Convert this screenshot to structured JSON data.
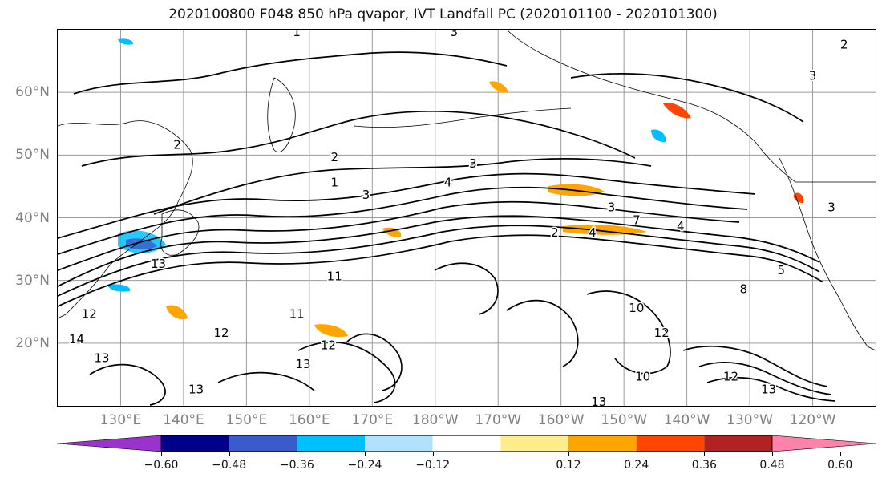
{
  "title": "2020100800 F048 850 hPa qvapor, IVT Landfall PC (2020101100 - 2020101300)",
  "map": {
    "lat_labels": [
      {
        "label": "60°N",
        "lat": 60
      },
      {
        "label": "50°N",
        "lat": 50
      },
      {
        "label": "40°N",
        "lat": 40
      },
      {
        "label": "30°N",
        "lat": 30
      },
      {
        "label": "20°N",
        "lat": 20
      }
    ],
    "lon_labels": [
      {
        "label": "130°E",
        "lon": 130
      },
      {
        "label": "140°E",
        "lon": 140
      },
      {
        "label": "150°E",
        "lon": 150
      },
      {
        "label": "160°E",
        "lon": 160
      },
      {
        "label": "170°E",
        "lon": 170
      },
      {
        "label": "180°W",
        "lon": 180
      },
      {
        "label": "170°W",
        "lon": 190
      },
      {
        "label": "160°W",
        "lon": 200
      },
      {
        "label": "150°W",
        "lon": 210
      },
      {
        "label": "140°W",
        "lon": 220
      },
      {
        "label": "130°W",
        "lon": 230
      },
      {
        "label": "120°W",
        "lon": 240
      }
    ],
    "extent": {
      "lon_min": 120,
      "lon_max": 250,
      "lat_min": 10,
      "lat_max": 70
    },
    "contour_labels": [
      {
        "text": "1",
        "lon": 158,
        "lat": 69
      },
      {
        "text": "3",
        "lon": 183,
        "lat": 69
      },
      {
        "text": "2",
        "lon": 139,
        "lat": 51
      },
      {
        "text": "2",
        "lon": 164,
        "lat": 49
      },
      {
        "text": "3",
        "lon": 186,
        "lat": 48
      },
      {
        "text": "1",
        "lon": 164,
        "lat": 45
      },
      {
        "text": "4",
        "lon": 182,
        "lat": 45
      },
      {
        "text": "3",
        "lon": 169,
        "lat": 43
      },
      {
        "text": "3",
        "lon": 208,
        "lat": 41
      },
      {
        "text": "7",
        "lon": 212,
        "lat": 39
      },
      {
        "text": "4",
        "lon": 219,
        "lat": 38
      },
      {
        "text": "4",
        "lon": 205,
        "lat": 37
      },
      {
        "text": "2",
        "lon": 199,
        "lat": 37
      },
      {
        "text": "13",
        "lon": 136,
        "lat": 32
      },
      {
        "text": "11",
        "lon": 164,
        "lat": 30
      },
      {
        "text": "12",
        "lon": 125,
        "lat": 24
      },
      {
        "text": "14",
        "lon": 123,
        "lat": 20
      },
      {
        "text": "13",
        "lon": 127,
        "lat": 17
      },
      {
        "text": "12",
        "lon": 146,
        "lat": 21
      },
      {
        "text": "11",
        "lon": 158,
        "lat": 24
      },
      {
        "text": "13",
        "lon": 159,
        "lat": 16
      },
      {
        "text": "12",
        "lon": 163,
        "lat": 19
      },
      {
        "text": "10",
        "lon": 212,
        "lat": 25
      },
      {
        "text": "12",
        "lon": 216,
        "lat": 21
      },
      {
        "text": "10",
        "lon": 213,
        "lat": 14
      },
      {
        "text": "13",
        "lon": 206,
        "lat": 10
      },
      {
        "text": "12",
        "lon": 227,
        "lat": 14
      },
      {
        "text": "13",
        "lon": 233,
        "lat": 12
      },
      {
        "text": "13",
        "lon": 142,
        "lat": 12
      },
      {
        "text": "2",
        "lon": 245,
        "lat": 67
      },
      {
        "text": "3",
        "lon": 240,
        "lat": 62
      },
      {
        "text": "3",
        "lon": 243,
        "lat": 41
      },
      {
        "text": "5",
        "lon": 235,
        "lat": 31
      },
      {
        "text": "8",
        "lon": 229,
        "lat": 28
      }
    ]
  },
  "colorbar": {
    "colors": [
      "#9a32cd",
      "#00008b",
      "#3a5acd",
      "#00bfff",
      "#b0e2ff",
      "#ffffff",
      "#ffec8b",
      "#ffa500",
      "#ff4500",
      "#b22222",
      "#ff82ab"
    ],
    "ticks": [
      "−0.60",
      "−0.48",
      "−0.36",
      "−0.24",
      "−0.12",
      "0.12",
      "0.24",
      "0.36",
      "0.48",
      "0.60"
    ]
  },
  "colors": {
    "contour": "#000000",
    "coast": "#000000",
    "grid": "#9a9a9a",
    "axis_label": "#808080"
  }
}
